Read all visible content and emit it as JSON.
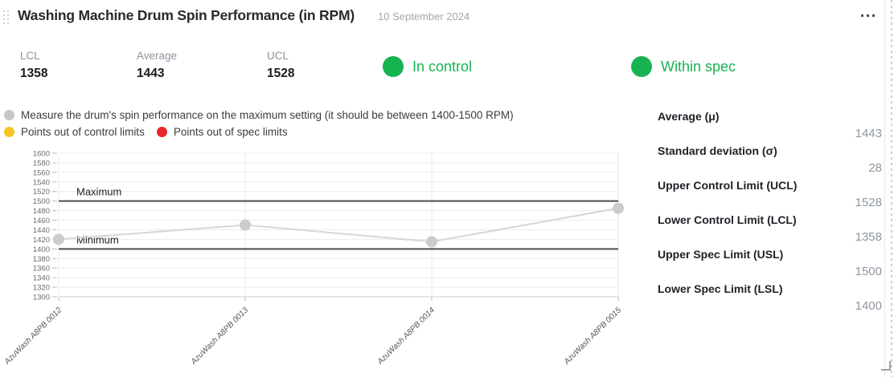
{
  "widget": {
    "title": "Washing Machine Drum Spin Performance (in RPM)",
    "date": "10 September 2024"
  },
  "summary": {
    "stats": [
      {
        "label": "LCL",
        "value": "1358"
      },
      {
        "label": "Average",
        "value": "1443"
      },
      {
        "label": "UCL",
        "value": "1528"
      }
    ],
    "badges": [
      {
        "label": "In control",
        "color": "#17b350"
      },
      {
        "label": "Within spec",
        "color": "#17b350"
      }
    ]
  },
  "legend": {
    "items": [
      {
        "label": "Measure the drum's spin performance on the maximum setting (it should be between 1400-1500 RPM)",
        "color": "#c7c7c7"
      },
      {
        "label": "Points out of control limits",
        "color": "#f6c425"
      },
      {
        "label": "Points out of spec limits",
        "color": "#e8282b"
      }
    ]
  },
  "chart_data": {
    "type": "line",
    "x": [
      "AzuWash A8PB 0012",
      "AzuWash A8PB 0013",
      "AzuWash A8PB 0014",
      "AzuWash A8PB 0015"
    ],
    "values": [
      1420,
      1450,
      1415,
      1485
    ],
    "ylim": [
      1300,
      1600
    ],
    "ytick_step": 20,
    "reference_lines": [
      {
        "label": "Maximum",
        "value": 1500
      },
      {
        "label": "Minimum",
        "value": 1400
      }
    ],
    "series_color": "#d6d6d6",
    "point_color": "#cccccc",
    "ref_line_color": "#4d4d4d",
    "grid_color": "#ececec",
    "grid": true,
    "legend_position": "none"
  },
  "stats_panel": {
    "rows": [
      {
        "label": "Average (μ)",
        "value": "1443"
      },
      {
        "label": "Standard deviation (σ)",
        "value": "28"
      },
      {
        "label": "Upper Control Limit (UCL)",
        "value": "1528"
      },
      {
        "label": "Lower Control Limit (LCL)",
        "value": "1358"
      },
      {
        "label": "Upper Spec Limit (USL)",
        "value": "1500"
      },
      {
        "label": "Lower Spec Limit (LSL)",
        "value": "1400"
      }
    ]
  }
}
